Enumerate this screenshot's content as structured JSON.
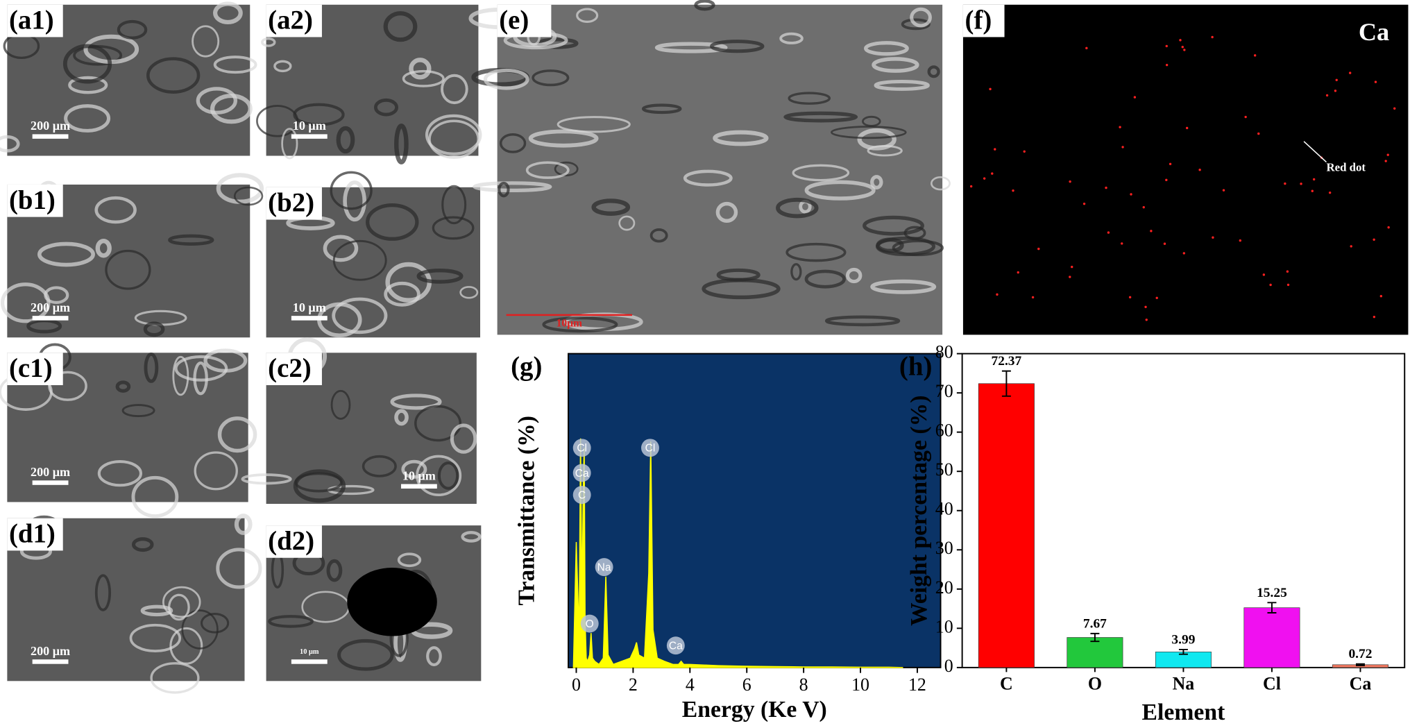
{
  "panels": [
    {
      "label": "(a1)",
      "scale": "200 μm"
    },
    {
      "label": "(a2)",
      "scale": "10 μm"
    },
    {
      "label": "(b1)",
      "scale": "200 μm"
    },
    {
      "label": "(b2)",
      "scale": "10 μm"
    },
    {
      "label": "(c1)",
      "scale": "200 μm"
    },
    {
      "label": "(c2)",
      "scale": "10 μm"
    },
    {
      "label": "(d1)",
      "scale": "200 μm"
    },
    {
      "label": "(d2)",
      "scale": "10 μm"
    },
    {
      "label": "(e)",
      "scale": "10μm"
    },
    {
      "label": "(f)",
      "annotation": "Ca",
      "pointer": "Red dot"
    }
  ],
  "chart_data": [
    {
      "type": "area",
      "label": "(g)",
      "x_label": "Energy (Ke V)",
      "y_label": "Transmittance  (%)",
      "background": "#0a3366",
      "color": "#ffff00",
      "x": [
        -0.1,
        0,
        0.1,
        0.15,
        0.2,
        0.25,
        0.28,
        0.31,
        0.35,
        0.4,
        0.47,
        0.52,
        0.57,
        0.65,
        0.8,
        0.95,
        1.04,
        1.12,
        1.3,
        1.6,
        1.9,
        2.05,
        2.12,
        2.2,
        2.4,
        2.55,
        2.62,
        2.7,
        2.85,
        3.1,
        3.4,
        3.6,
        3.69,
        3.78,
        4.0,
        5,
        6,
        7,
        8,
        9,
        10,
        11,
        11.5
      ],
      "values": [
        0,
        40,
        10,
        73,
        20,
        60,
        70,
        15,
        3,
        2,
        4,
        11,
        3,
        2,
        1,
        3,
        29,
        4,
        1,
        2,
        3,
        6,
        8,
        4,
        3,
        30,
        72,
        12,
        3,
        2,
        1,
        1,
        2,
        1,
        1,
        0.6,
        0.4,
        0.3,
        0.2,
        0.2,
        0.1,
        0.1,
        0
      ],
      "peak_labels": [
        {
          "text": "Cl",
          "x": 0.2,
          "y": 70
        },
        {
          "text": "Ca",
          "x": 0.2,
          "y": 62
        },
        {
          "text": "C",
          "x": 0.2,
          "y": 55
        },
        {
          "text": "Na",
          "x": 0.98,
          "y": 32
        },
        {
          "text": "O",
          "x": 0.47,
          "y": 14
        },
        {
          "text": "Cl",
          "x": 2.6,
          "y": 70
        },
        {
          "text": "Ca",
          "x": 3.5,
          "y": 7
        }
      ],
      "xlim": [
        -0.28,
        12.82
      ],
      "xticks": [
        0,
        2,
        4,
        6,
        8,
        10,
        12
      ],
      "ylim": [
        0,
        100
      ]
    },
    {
      "type": "bar",
      "label": "(h)",
      "x_label": "Element",
      "y_label": "Weight percentage (%)",
      "categories": [
        "C",
        "O",
        "Na",
        "Cl",
        "Ca"
      ],
      "values": [
        72.37,
        7.67,
        3.99,
        15.25,
        0.72
      ],
      "errors": [
        3.2,
        1.0,
        0.6,
        1.3,
        0.2
      ],
      "colors": [
        "#ff0000",
        "#22c83c",
        "#10e8f0",
        "#f010f0",
        "#f07860"
      ],
      "ylim": [
        0,
        80
      ],
      "yticks": [
        0,
        10,
        20,
        30,
        40,
        50,
        60,
        70,
        80
      ]
    }
  ]
}
